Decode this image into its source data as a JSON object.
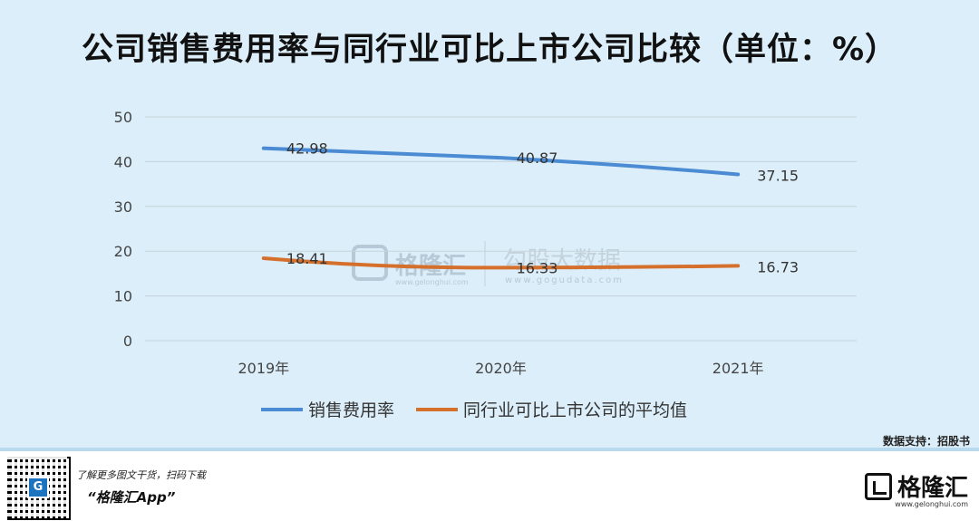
{
  "title": "公司销售费用率与同行业可比上市公司比较（单位：%）",
  "source": "数据支持：招股书",
  "watermark": {
    "text1": "格隆汇",
    "text1_sub": "www.gelonghui.com",
    "text2": "勾股大数据",
    "text2_sub": "www.gogudata.com"
  },
  "footer": {
    "promo_text": "了解更多图文干货，扫码下载",
    "app_name": "“格隆汇App”",
    "brand": "格隆汇",
    "brand_sub": "www.gelonghui.com"
  },
  "chart_data": {
    "type": "line",
    "categories": [
      "2019年",
      "2020年",
      "2021年"
    ],
    "ylim": [
      0,
      50
    ],
    "yticks": [
      0,
      10,
      20,
      30,
      40,
      50
    ],
    "grid": true,
    "legend_position": "bottom",
    "series": [
      {
        "name": "销售费用率",
        "values": [
          42.98,
          40.87,
          37.15
        ],
        "color": "#4a8bd4"
      },
      {
        "name": "同行业可比上市公司的平均值",
        "values": [
          18.41,
          16.33,
          16.73
        ],
        "color": "#d5702c"
      }
    ]
  }
}
